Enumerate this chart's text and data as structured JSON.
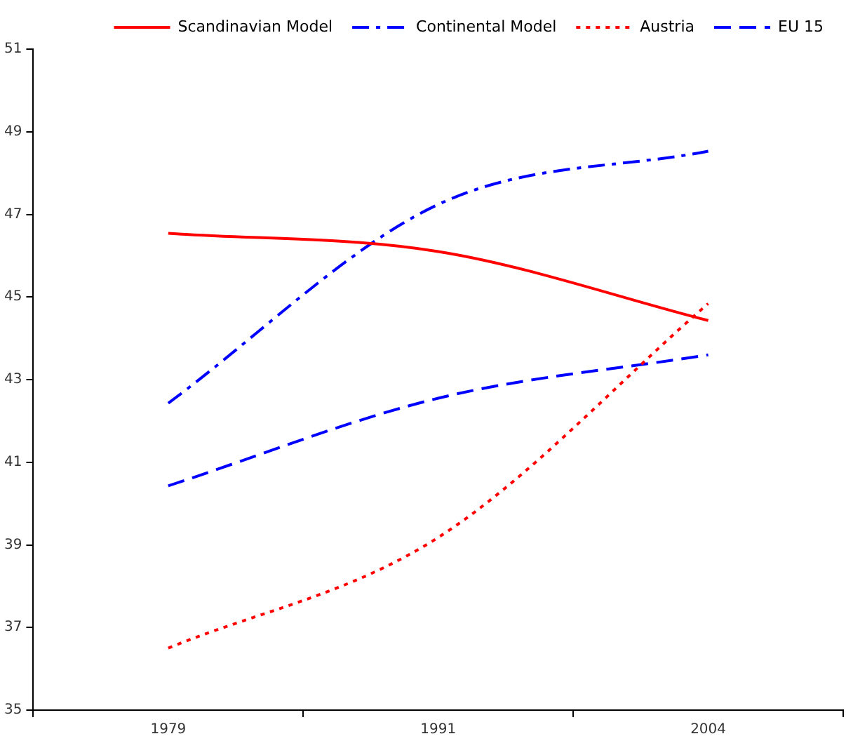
{
  "chart_data": {
    "type": "line",
    "categories": [
      "1979",
      "1991",
      "2004"
    ],
    "series": [
      {
        "name": "Scandinavian Model",
        "color": "#ff0000",
        "line_style": "solid",
        "values": [
          46.54,
          46.1,
          44.43
        ]
      },
      {
        "name": "Continental Model",
        "color": "#0000ff",
        "line_style": "dashdot",
        "values": [
          42.43,
          47.24,
          48.53
        ]
      },
      {
        "name": "Austria",
        "color": "#ff0000",
        "line_style": "dotted",
        "values": [
          36.5,
          39.18,
          44.84
        ]
      },
      {
        "name": "EU 15",
        "color": "#0000ff",
        "line_style": "dashed",
        "values": [
          40.43,
          42.55,
          43.6
        ]
      }
    ],
    "ylim": [
      35,
      51
    ],
    "yticks": [
      35,
      37,
      39,
      41,
      43,
      45,
      47,
      49,
      51
    ],
    "grid": false,
    "legend": "top",
    "marker": "none"
  }
}
